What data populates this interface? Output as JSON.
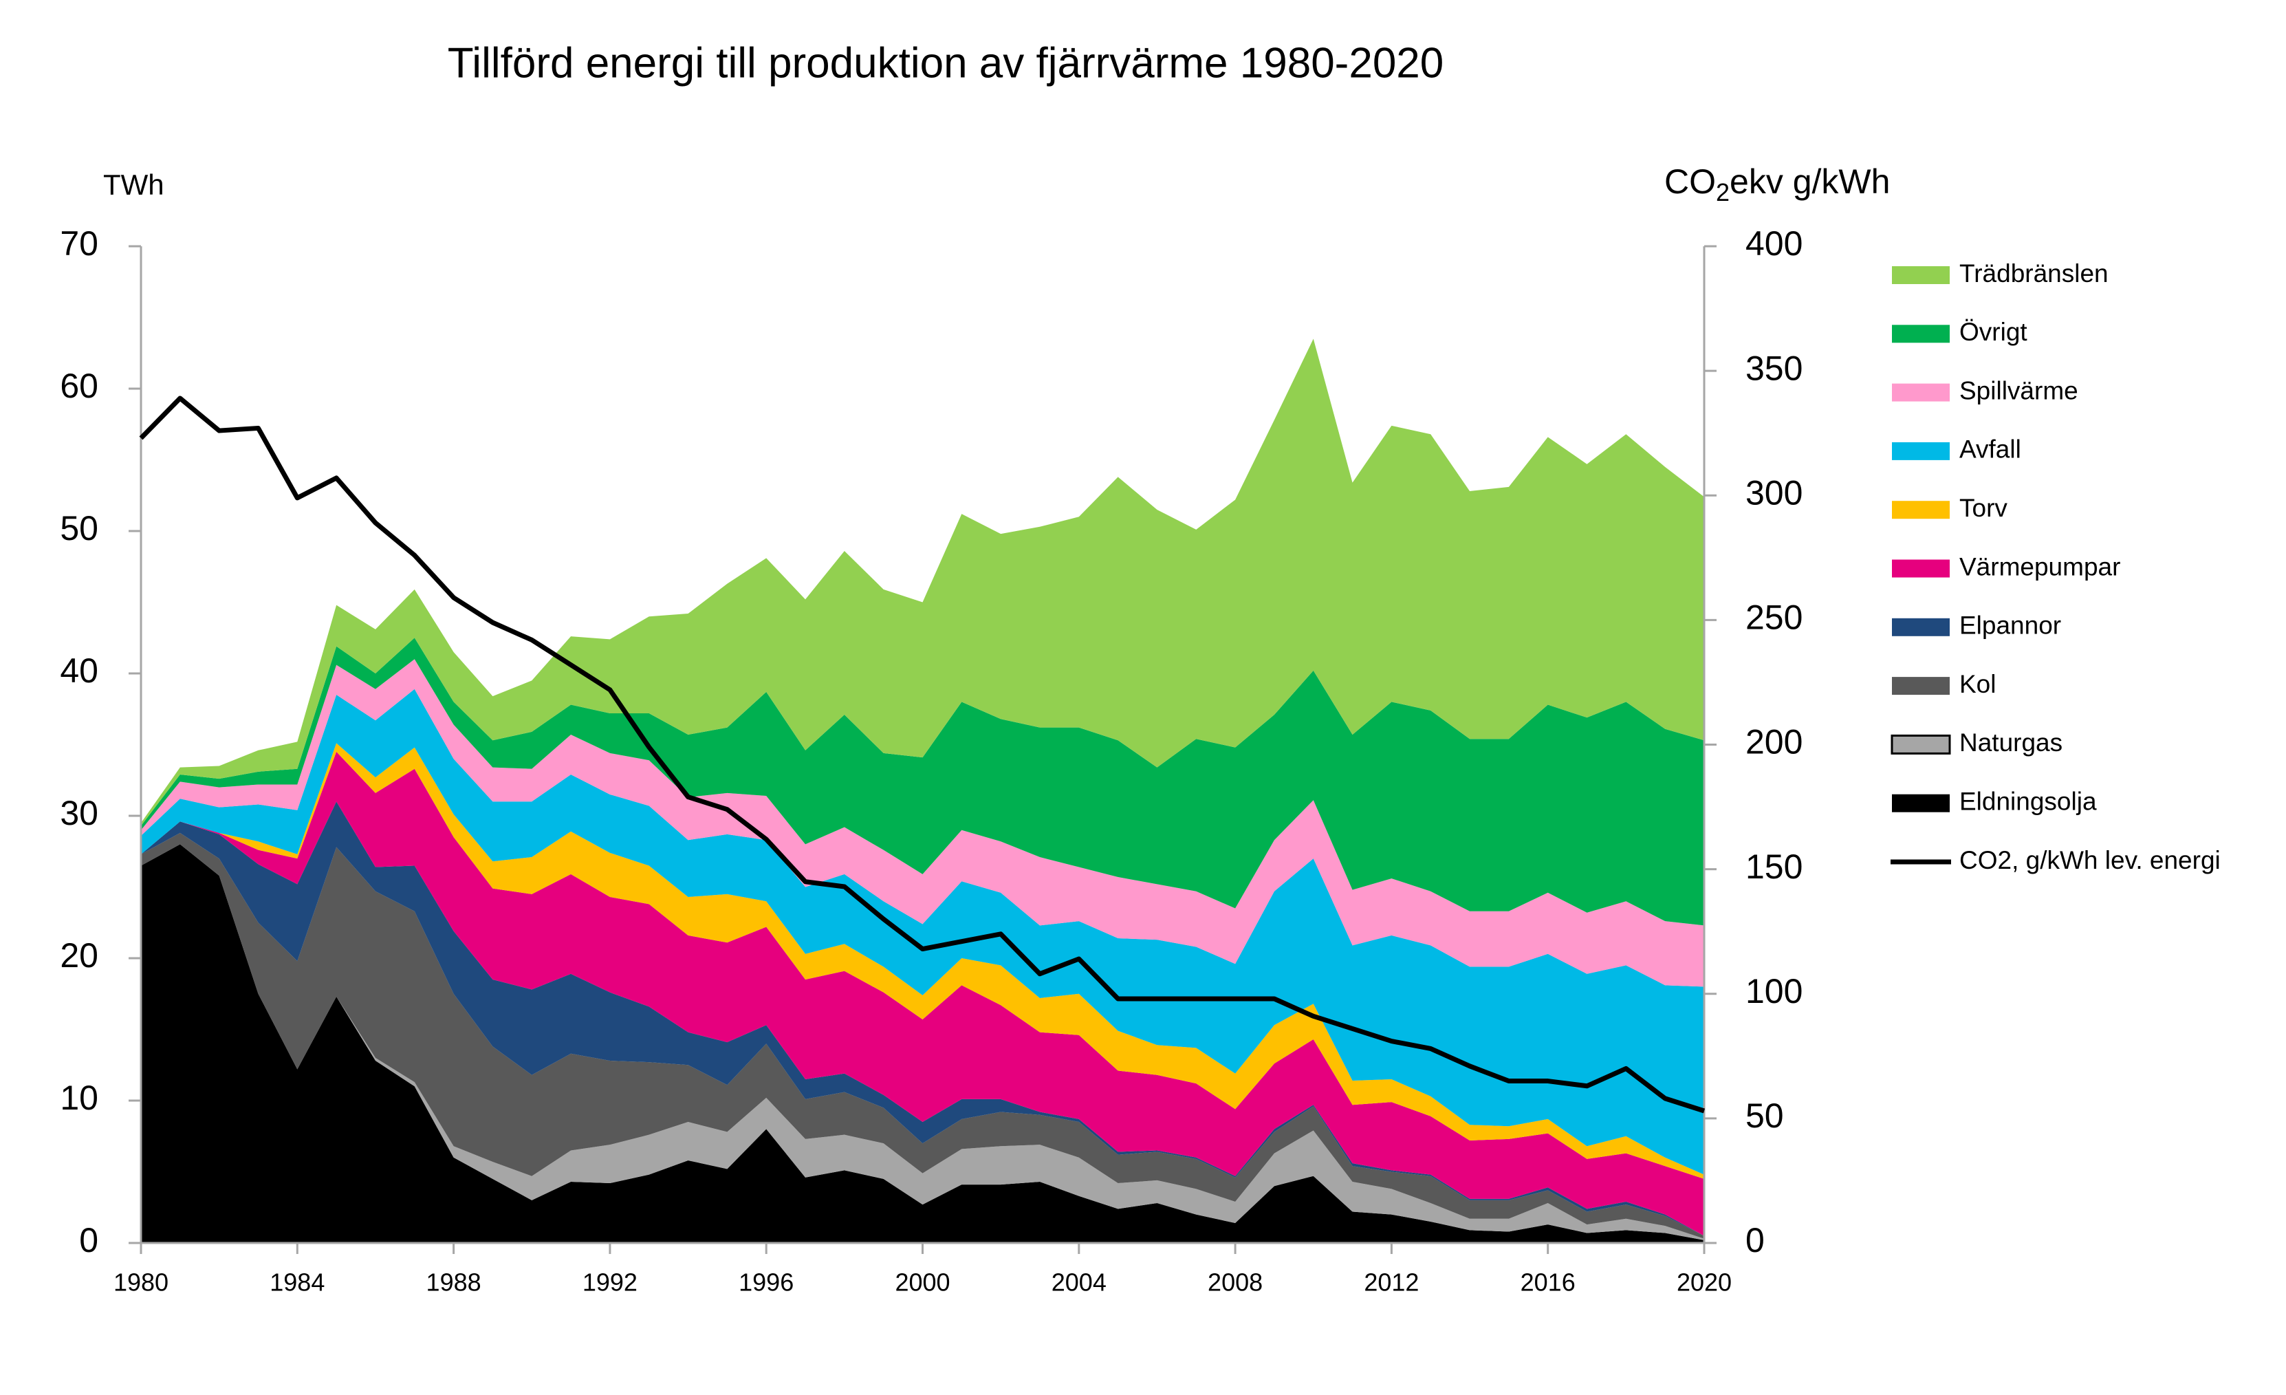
{
  "chart_data": {
    "type": "stacked-area",
    "title": "Tillförd energi till produktion av fjärrvärme 1980-2020",
    "y_label": "TWh",
    "y2_label": [
      "CO",
      "2",
      "ekv g/kWh"
    ],
    "x": [
      1980,
      1981,
      1982,
      1983,
      1984,
      1985,
      1986,
      1987,
      1988,
      1989,
      1990,
      1991,
      1992,
      1993,
      1994,
      1995,
      1996,
      1997,
      1998,
      1999,
      2000,
      2001,
      2002,
      2003,
      2004,
      2005,
      2006,
      2007,
      2008,
      2009,
      2010,
      2011,
      2012,
      2013,
      2014,
      2015,
      2016,
      2017,
      2018,
      2019,
      2020
    ],
    "xlim": [
      1980,
      2020
    ],
    "xticks": [
      1980,
      1984,
      1988,
      1992,
      1996,
      2000,
      2004,
      2008,
      2012,
      2016,
      2020
    ],
    "ylim": [
      0,
      70
    ],
    "yticks": [
      0,
      10,
      20,
      30,
      40,
      50,
      60,
      70
    ],
    "y2lim": [
      0,
      400
    ],
    "y2ticks": [
      0,
      50,
      100,
      150,
      200,
      250,
      300,
      350,
      400
    ],
    "series": [
      {
        "name": "Eldningsolja",
        "color": "#000000",
        "values": [
          26.5,
          28,
          25.8,
          17.5,
          12.2,
          17.3,
          12.8,
          11,
          6,
          4.5,
          3,
          4.3,
          4.2,
          4.8,
          5.8,
          5.2,
          8,
          4.6,
          5.1,
          4.5,
          2.7,
          4.1,
          4.1,
          4.3,
          3.3,
          2.4,
          2.8,
          2,
          1.4,
          4,
          4.7,
          2.2,
          2,
          1.5,
          0.9,
          0.8,
          1.3,
          0.7,
          0.9,
          0.7,
          0.2
        ]
      },
      {
        "name": "Naturgas",
        "color": "#a6a6a6",
        "values": [
          0,
          0,
          0,
          0,
          0,
          0,
          0.2,
          0.3,
          0.8,
          1.2,
          1.7,
          2.2,
          2.7,
          2.8,
          2.7,
          2.6,
          2.2,
          2.7,
          2.5,
          2.5,
          2.2,
          2.5,
          2.7,
          2.6,
          2.7,
          1.8,
          1.6,
          1.8,
          1.5,
          2.3,
          3.2,
          2.1,
          1.8,
          1.3,
          0.8,
          0.9,
          1.5,
          0.6,
          0.8,
          0.5,
          0.1
        ]
      },
      {
        "name": "Kol",
        "color": "#595959",
        "values": [
          0.8,
          0.8,
          1.2,
          5,
          7.6,
          10.5,
          11.7,
          12,
          10.7,
          8.1,
          7.1,
          6.8,
          5.9,
          5.1,
          4,
          3.3,
          3.8,
          2.8,
          3,
          2.5,
          2.1,
          2.1,
          2.4,
          2.1,
          2.5,
          2,
          2,
          2.1,
          1.7,
          1.5,
          1.7,
          1.1,
          1.2,
          1.9,
          1.3,
          1.3,
          0.9,
          0.9,
          1,
          0.7,
          0.2
        ]
      },
      {
        "name": "Elpannor",
        "color": "#1f497d",
        "values": [
          0,
          0.8,
          1.7,
          4.1,
          5.4,
          3.2,
          1.7,
          3.2,
          4.4,
          4.7,
          6,
          5.6,
          4.8,
          3.9,
          2.3,
          3,
          1.3,
          1.4,
          1.3,
          0.9,
          1.5,
          1.4,
          0.9,
          0.2,
          0.2,
          0.2,
          0.1,
          0.1,
          0.1,
          0.2,
          0.1,
          0.2,
          0.1,
          0.1,
          0.1,
          0.1,
          0.2,
          0.2,
          0.2,
          0.1,
          0
        ]
      },
      {
        "name": "Värmepumpar",
        "color": "#e6007e",
        "values": [
          0,
          0,
          0.1,
          1,
          1.8,
          3.5,
          5.2,
          6.8,
          6.6,
          6.4,
          6.7,
          7,
          6.7,
          7.2,
          6.8,
          7,
          6.9,
          7,
          7.2,
          7.2,
          7.2,
          8,
          6.6,
          5.6,
          5.9,
          5.7,
          5.3,
          5.2,
          4.7,
          4.6,
          4.6,
          4.1,
          4.8,
          4.1,
          4.1,
          4.2,
          3.8,
          3.5,
          3.4,
          3.4,
          4
        ]
      },
      {
        "name": "Torv",
        "color": "#ffc000",
        "values": [
          0,
          0,
          0,
          0.6,
          0.3,
          0.6,
          1.1,
          1.5,
          1.6,
          1.9,
          2.6,
          3,
          3.1,
          2.7,
          2.7,
          3.4,
          1.8,
          1.8,
          1.9,
          1.8,
          1.7,
          1.9,
          2.8,
          2.4,
          2.9,
          2.8,
          2.1,
          2.5,
          2.5,
          2.7,
          2.5,
          1.7,
          1.6,
          1.4,
          1.1,
          0.9,
          1,
          0.9,
          1.2,
          0.6,
          0.3
        ]
      },
      {
        "name": "Avfall",
        "color": "#00b9e6",
        "values": [
          1.3,
          1.6,
          1.8,
          2.6,
          3.1,
          3.4,
          4,
          4.1,
          3.9,
          4.2,
          3.9,
          4,
          4.1,
          4.2,
          4,
          4.2,
          4.3,
          4.7,
          4.9,
          4.6,
          5,
          5.4,
          5.1,
          5.1,
          5.1,
          6.5,
          7.4,
          7.1,
          7.7,
          9.4,
          10.2,
          9.5,
          10.1,
          10.6,
          11.1,
          11.2,
          11.6,
          12.1,
          12,
          12.1,
          13.2
        ]
      },
      {
        "name": "Spillvärme",
        "color": "#ff99cc",
        "values": [
          0.4,
          1.2,
          1.4,
          1.4,
          1.8,
          2.1,
          2.2,
          2.1,
          2.4,
          2.4,
          2.3,
          2.8,
          2.9,
          3.2,
          3,
          2.9,
          3.1,
          3,
          3.3,
          3.6,
          3.5,
          3.6,
          3.6,
          4.8,
          3.8,
          4.3,
          3.9,
          3.9,
          3.9,
          3.6,
          4.1,
          3.9,
          4,
          3.8,
          3.9,
          3.9,
          4.3,
          4.3,
          4.5,
          4.5,
          4.3
        ]
      },
      {
        "name": "Övrigt",
        "color": "#00b050",
        "values": [
          0.3,
          0.5,
          0.6,
          0.9,
          1.1,
          1.3,
          1.1,
          1.5,
          1.6,
          1.9,
          2.6,
          2.1,
          2.8,
          3.3,
          4.4,
          4.6,
          7.3,
          6.6,
          7.9,
          6.8,
          8.2,
          9,
          8.6,
          9.1,
          9.8,
          9.6,
          8.2,
          10.7,
          11.3,
          8.8,
          9.1,
          10.9,
          12.4,
          12.7,
          12.1,
          12.1,
          13.2,
          13.7,
          14,
          13.5,
          13
        ]
      },
      {
        "name": "Trädbränslen",
        "color": "#92d050",
        "values": [
          0.2,
          0.5,
          0.9,
          1.5,
          1.9,
          2.9,
          3.1,
          3.4,
          3.5,
          3.1,
          3.6,
          4.8,
          5.2,
          6.8,
          8.5,
          10.1,
          9.4,
          10.6,
          11.5,
          11.5,
          10.9,
          13.2,
          13,
          14.1,
          14.8,
          18.5,
          18.1,
          14.7,
          17.4,
          20.7,
          23.3,
          17.7,
          19.4,
          19.4,
          17.4,
          17.7,
          18.8,
          17.8,
          18.8,
          18.4,
          17.1
        ]
      },
      {
        "name": "CO2, g/kWh lev. energi",
        "color": "#000000",
        "type": "line",
        "axis": "y2",
        "values": [
          323,
          339,
          326,
          327,
          299,
          307,
          289,
          276,
          259,
          249,
          242,
          232,
          222,
          199,
          179,
          174,
          162,
          145,
          143,
          130,
          118,
          121,
          124,
          108,
          114,
          98,
          98,
          98,
          98,
          98,
          91,
          86,
          81,
          78,
          71,
          65,
          65,
          63,
          70,
          58,
          53
        ]
      }
    ]
  }
}
